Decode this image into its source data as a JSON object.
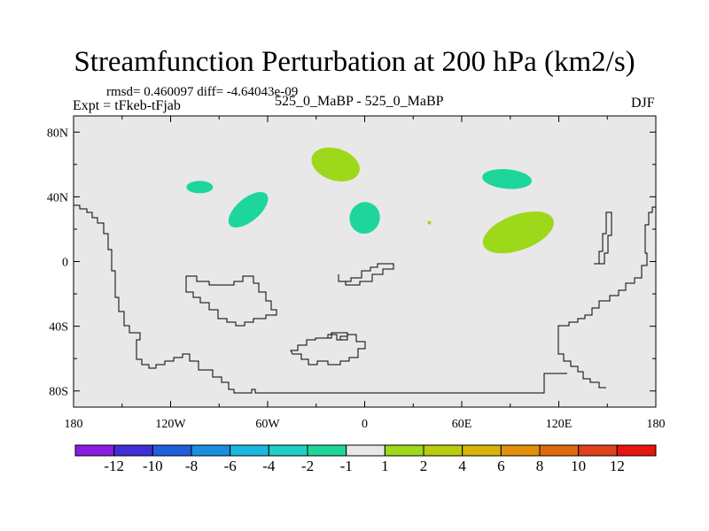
{
  "header": {
    "title": "Streamfunction Perturbation at 200 hPa (km2/s)",
    "stats": "rmsd= 0.460097 diff= -4.64043e-09",
    "experiment": "Expt = tFkeb-tFjab",
    "cases": "525_0_MaBP - 525_0_MaBP",
    "season": "DJF"
  },
  "axes": {
    "lat_labels": [
      "80N",
      "40N",
      "0",
      "40S",
      "80S"
    ],
    "lon_labels": [
      "180",
      "120W",
      "60W",
      "0",
      "60E",
      "120E",
      "180"
    ]
  },
  "colorbar": {
    "colors": [
      "#8a1be0",
      "#3f2fd6",
      "#1f5fdc",
      "#1a8fe0",
      "#1bb8e0",
      "#1fd0c8",
      "#1ed69c",
      "#e8e8e8",
      "#9ed81a",
      "#b8cc10",
      "#d8b40a",
      "#e0900a",
      "#e06a10",
      "#e0401a",
      "#e8140e"
    ],
    "labels": [
      "-12",
      "-10",
      "-8",
      "-6",
      "-4",
      "-2",
      "-1",
      "1",
      "2",
      "4",
      "6",
      "8",
      "10",
      "12"
    ]
  },
  "map": {
    "background_color": "#e8e8e8",
    "blobs": [
      {
        "name": "pos-blob-north-atlantic",
        "lon": -18,
        "lat": 60,
        "color": "#9ed81a"
      },
      {
        "name": "neg-blob-north-pacific",
        "lon": -102,
        "lat": 46,
        "color": "#1ed69c"
      },
      {
        "name": "neg-blob-north-america",
        "lon": -72,
        "lat": 32,
        "color": "#1ed69c"
      },
      {
        "name": "neg-blob-west-africa",
        "lon": 0,
        "lat": 27,
        "color": "#1ed69c"
      },
      {
        "name": "neg-blob-siberia",
        "lon": 88,
        "lat": 51,
        "color": "#1ed69c"
      },
      {
        "name": "pos-blob-south-asia",
        "lon": 95,
        "lat": 18,
        "color": "#9ed81a"
      },
      {
        "name": "pos-dot-arabia",
        "lon": 40,
        "lat": 24,
        "color": "#9ed81a"
      }
    ]
  }
}
